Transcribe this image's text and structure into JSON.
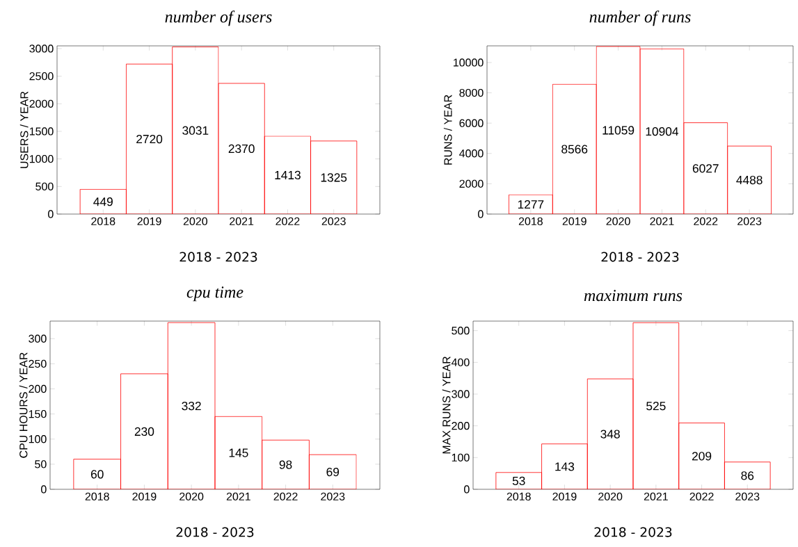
{
  "chart_data": [
    {
      "type": "bar",
      "title": "number of users",
      "xlabel": "2018 - 2023",
      "ylabel": "USERS / YEAR",
      "categories": [
        "2018",
        "2019",
        "2020",
        "2021",
        "2022",
        "2023"
      ],
      "values": [
        449,
        2720,
        3031,
        2370,
        1413,
        1325
      ],
      "color": "#ff0000",
      "ylim": [
        0,
        3050
      ],
      "yticks": [
        0,
        500,
        1000,
        1500,
        2000,
        2500,
        3000
      ],
      "data_labels": true
    },
    {
      "type": "bar",
      "title": "number of runs",
      "xlabel": "2018 - 2023",
      "ylabel": "RUNS / YEAR",
      "categories": [
        "2018",
        "2019",
        "2020",
        "2021",
        "2022",
        "2023"
      ],
      "values": [
        1277,
        8566,
        11059,
        10904,
        6027,
        4488
      ],
      "color": "#ff0000",
      "ylim": [
        0,
        11100
      ],
      "yticks": [
        0,
        2000,
        4000,
        6000,
        8000,
        10000
      ],
      "data_labels": true
    },
    {
      "type": "bar",
      "title": "cpu time",
      "xlabel": "2018 - 2023",
      "ylabel": "CPU HOURS / YEAR",
      "categories": [
        "2018",
        "2019",
        "2020",
        "2021",
        "2022",
        "2023"
      ],
      "values": [
        60,
        230,
        332,
        145,
        98,
        69
      ],
      "color": "#ff0000",
      "ylim": [
        0,
        335
      ],
      "yticks": [
        0,
        50,
        100,
        150,
        200,
        250,
        300
      ],
      "data_labels": true
    },
    {
      "type": "bar",
      "title": "maximum runs",
      "xlabel": "2018 - 2023",
      "ylabel": "MAX RUNS / YEAR",
      "categories": [
        "2018",
        "2019",
        "2020",
        "2021",
        "2022",
        "2023"
      ],
      "values": [
        53,
        143,
        348,
        525,
        209,
        86
      ],
      "color": "#ff0000",
      "ylim": [
        0,
        530
      ],
      "yticks": [
        0,
        100,
        200,
        300,
        400,
        500
      ],
      "data_labels": true
    }
  ]
}
